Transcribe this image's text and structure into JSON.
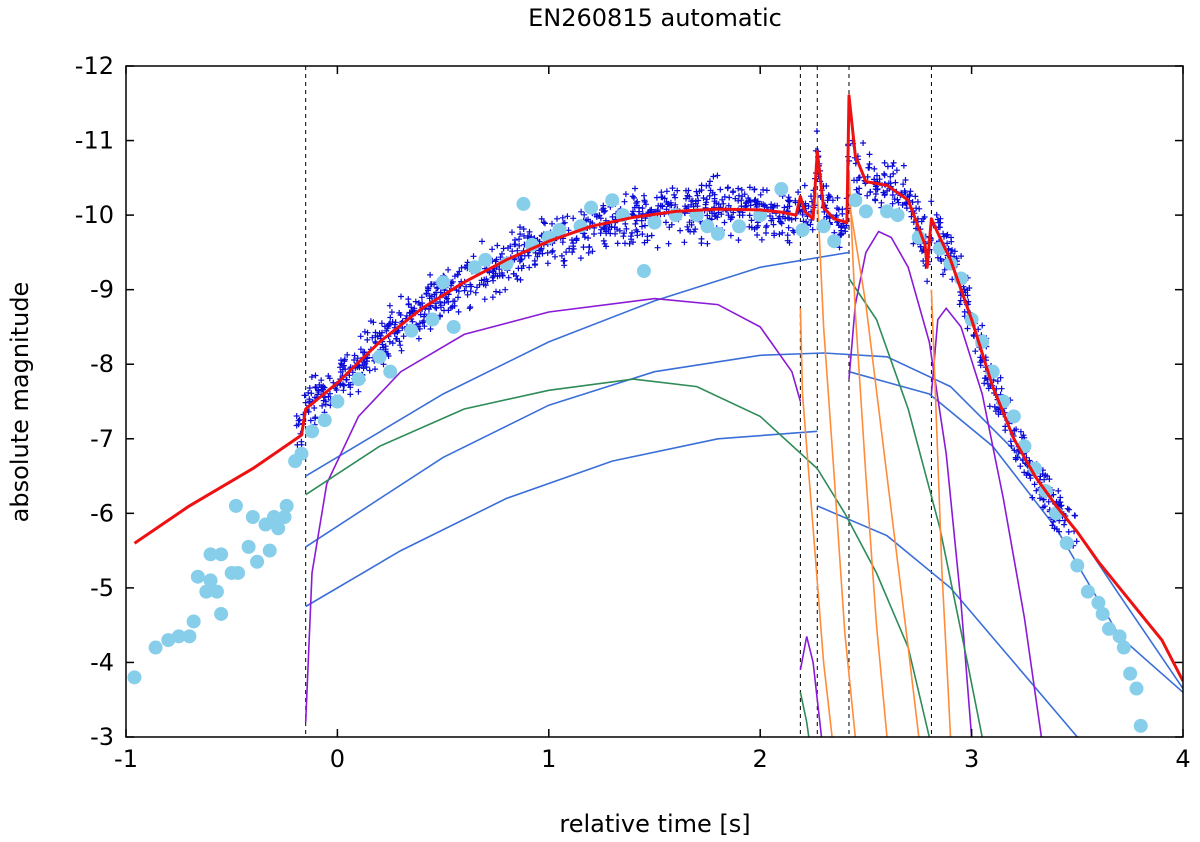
{
  "chart_data": {
    "type": "scatter",
    "title": "EN260815 automatic",
    "xlabel": "relative time [s]",
    "ylabel": "absolute magnitude",
    "xlim": [
      -1,
      4
    ],
    "ylim": [
      -3,
      -12
    ],
    "y_axis_inverted": true,
    "grid": false,
    "legend": "none",
    "x_ticks": [
      -1,
      0,
      1,
      2,
      3,
      4
    ],
    "y_ticks": [
      -3,
      -4,
      -5,
      -6,
      -7,
      -8,
      -9,
      -10,
      -11,
      -12
    ],
    "vlines": [
      -0.15,
      2.19,
      2.27,
      2.42,
      2.81
    ],
    "colors": {
      "observed_plus": "#0b0bd6",
      "observed_circles": "#87ceeb",
      "model_total": "#ee1111",
      "component_blue": "#3b6fd8",
      "component_purple": "#8b1ad6",
      "component_green": "#2e8b57",
      "component_orange": "#ff8c3a"
    },
    "series": [
      {
        "style": "circles",
        "color_key": "observed_circles",
        "points": [
          [
            -0.96,
            -3.8
          ],
          [
            -0.86,
            -4.2
          ],
          [
            -0.8,
            -4.3
          ],
          [
            -0.75,
            -4.35
          ],
          [
            -0.7,
            -4.35
          ],
          [
            -0.68,
            -4.55
          ],
          [
            -0.66,
            -5.15
          ],
          [
            -0.62,
            -4.95
          ],
          [
            -0.6,
            -5.45
          ],
          [
            -0.6,
            -5.1
          ],
          [
            -0.57,
            -4.95
          ],
          [
            -0.55,
            -5.45
          ],
          [
            -0.55,
            -4.65
          ],
          [
            -0.5,
            -5.2
          ],
          [
            -0.48,
            -6.1
          ],
          [
            -0.47,
            -5.2
          ],
          [
            -0.42,
            -5.55
          ],
          [
            -0.4,
            -5.95
          ],
          [
            -0.38,
            -5.35
          ],
          [
            -0.34,
            -5.85
          ],
          [
            -0.32,
            -5.5
          ],
          [
            -0.3,
            -5.95
          ],
          [
            -0.28,
            -5.8
          ],
          [
            -0.25,
            -5.95
          ],
          [
            -0.24,
            -6.1
          ],
          [
            -0.2,
            -6.7
          ],
          [
            -0.17,
            -6.8
          ],
          [
            -0.12,
            -7.1
          ],
          [
            -0.06,
            -7.25
          ],
          [
            0.0,
            -7.5
          ],
          [
            0.1,
            -7.8
          ],
          [
            0.2,
            -8.1
          ],
          [
            0.25,
            -7.9
          ],
          [
            0.35,
            -8.45
          ],
          [
            0.45,
            -8.6
          ],
          [
            0.5,
            -9.1
          ],
          [
            0.55,
            -8.5
          ],
          [
            0.65,
            -9.3
          ],
          [
            0.7,
            -9.4
          ],
          [
            0.8,
            -9.35
          ],
          [
            0.88,
            -10.15
          ],
          [
            0.92,
            -9.6
          ],
          [
            1.0,
            -9.7
          ],
          [
            1.05,
            -9.8
          ],
          [
            1.15,
            -9.85
          ],
          [
            1.2,
            -10.1
          ],
          [
            1.3,
            -10.2
          ],
          [
            1.35,
            -10.0
          ],
          [
            1.45,
            -9.25
          ],
          [
            1.5,
            -9.9
          ],
          [
            1.6,
            -10.0
          ],
          [
            1.7,
            -10.0
          ],
          [
            1.75,
            -9.85
          ],
          [
            1.8,
            -9.75
          ],
          [
            1.9,
            -9.85
          ],
          [
            2.0,
            -10.0
          ],
          [
            2.1,
            -10.35
          ],
          [
            2.2,
            -9.8
          ],
          [
            2.3,
            -9.85
          ],
          [
            2.35,
            -9.65
          ],
          [
            2.45,
            -10.2
          ],
          [
            2.5,
            -10.05
          ],
          [
            2.6,
            -10.05
          ],
          [
            2.65,
            -10.0
          ],
          [
            2.75,
            -9.7
          ],
          [
            2.85,
            -9.55
          ],
          [
            2.9,
            -9.35
          ],
          [
            2.95,
            -9.15
          ],
          [
            3.0,
            -8.6
          ],
          [
            3.05,
            -8.3
          ],
          [
            3.1,
            -7.9
          ],
          [
            3.15,
            -7.5
          ],
          [
            3.2,
            -7.3
          ],
          [
            3.25,
            -6.9
          ],
          [
            3.3,
            -6.6
          ],
          [
            3.35,
            -6.3
          ],
          [
            3.4,
            -6.0
          ],
          [
            3.45,
            -5.6
          ],
          [
            3.5,
            -5.3
          ],
          [
            3.55,
            -4.95
          ],
          [
            3.6,
            -4.8
          ],
          [
            3.62,
            -4.65
          ],
          [
            3.65,
            -4.45
          ],
          [
            3.7,
            -4.35
          ],
          [
            3.72,
            -4.2
          ],
          [
            3.75,
            -3.85
          ],
          [
            3.78,
            -3.65
          ],
          [
            3.8,
            -3.15
          ]
        ]
      },
      {
        "style": "plus",
        "color_key": "observed_plus",
        "generator": "dense band around model_total from t=-0.2 to t=3.5, scatter amplitude 0.3 mag"
      },
      {
        "style": "line",
        "color_key": "model_total",
        "points": [
          [
            -0.96,
            -5.6
          ],
          [
            -0.7,
            -6.1
          ],
          [
            -0.4,
            -6.6
          ],
          [
            -0.17,
            -7.05
          ],
          [
            -0.15,
            -7.4
          ],
          [
            0.0,
            -7.75
          ],
          [
            0.2,
            -8.3
          ],
          [
            0.4,
            -8.75
          ],
          [
            0.6,
            -9.1
          ],
          [
            0.8,
            -9.4
          ],
          [
            1.0,
            -9.65
          ],
          [
            1.2,
            -9.85
          ],
          [
            1.4,
            -9.97
          ],
          [
            1.6,
            -10.05
          ],
          [
            1.8,
            -10.08
          ],
          [
            2.0,
            -10.07
          ],
          [
            2.1,
            -10.04
          ],
          [
            2.17,
            -10.0
          ],
          [
            2.19,
            -10.25
          ],
          [
            2.21,
            -10.05
          ],
          [
            2.25,
            -9.95
          ],
          [
            2.27,
            -10.85
          ],
          [
            2.3,
            -10.1
          ],
          [
            2.35,
            -9.95
          ],
          [
            2.41,
            -9.9
          ],
          [
            2.42,
            -11.6
          ],
          [
            2.45,
            -10.8
          ],
          [
            2.5,
            -10.45
          ],
          [
            2.6,
            -10.4
          ],
          [
            2.7,
            -10.2
          ],
          [
            2.78,
            -9.6
          ],
          [
            2.79,
            -9.3
          ],
          [
            2.81,
            -9.95
          ],
          [
            2.85,
            -9.7
          ],
          [
            2.9,
            -9.4
          ],
          [
            3.0,
            -8.6
          ],
          [
            3.1,
            -7.7
          ],
          [
            3.2,
            -7.0
          ],
          [
            3.3,
            -6.5
          ],
          [
            3.4,
            -6.1
          ],
          [
            3.5,
            -5.75
          ],
          [
            3.6,
            -5.35
          ],
          [
            3.7,
            -5.0
          ],
          [
            3.8,
            -4.65
          ],
          [
            3.9,
            -4.3
          ],
          [
            4.0,
            -3.75
          ]
        ]
      },
      {
        "style": "line",
        "color_key": "component_blue",
        "points": [
          [
            -0.15,
            -6.5
          ],
          [
            0.5,
            -7.6
          ],
          [
            1.0,
            -8.3
          ],
          [
            1.5,
            -8.85
          ],
          [
            2.0,
            -9.3
          ],
          [
            2.42,
            -9.5
          ]
        ]
      },
      {
        "style": "line",
        "color_key": "component_blue",
        "points": [
          [
            -0.15,
            -5.55
          ],
          [
            0.5,
            -6.75
          ],
          [
            1.0,
            -7.45
          ],
          [
            1.5,
            -7.9
          ],
          [
            2.0,
            -8.12
          ],
          [
            2.3,
            -8.15
          ],
          [
            2.6,
            -8.1
          ],
          [
            2.9,
            -7.7
          ],
          [
            3.2,
            -6.85
          ],
          [
            3.5,
            -5.75
          ],
          [
            3.7,
            -4.9
          ],
          [
            4.0,
            -3.65
          ]
        ]
      },
      {
        "style": "line",
        "color_key": "component_blue",
        "points": [
          [
            -0.15,
            -4.75
          ],
          [
            0.3,
            -5.5
          ],
          [
            0.8,
            -6.2
          ],
          [
            1.3,
            -6.7
          ],
          [
            1.8,
            -7.0
          ],
          [
            2.27,
            -7.1
          ]
        ]
      },
      {
        "style": "line",
        "color_key": "component_blue",
        "points": [
          [
            2.42,
            -7.9
          ],
          [
            2.8,
            -7.6
          ],
          [
            3.1,
            -6.9
          ],
          [
            3.4,
            -5.8
          ],
          [
            3.7,
            -4.35
          ],
          [
            4.0,
            -3.6
          ]
        ]
      },
      {
        "style": "line",
        "color_key": "component_blue",
        "points": [
          [
            2.27,
            -6.1
          ],
          [
            2.6,
            -5.7
          ],
          [
            2.9,
            -5.0
          ],
          [
            3.2,
            -4.0
          ],
          [
            3.5,
            -3.0
          ]
        ]
      },
      {
        "style": "line",
        "color_key": "component_purple",
        "points": [
          [
            -0.15,
            -3.2
          ],
          [
            -0.12,
            -5.2
          ],
          [
            -0.05,
            -6.4
          ],
          [
            0.1,
            -7.3
          ],
          [
            0.3,
            -7.9
          ],
          [
            0.6,
            -8.4
          ],
          [
            1.0,
            -8.7
          ],
          [
            1.5,
            -8.88
          ],
          [
            1.8,
            -8.8
          ],
          [
            2.0,
            -8.5
          ],
          [
            2.15,
            -7.9
          ],
          [
            2.19,
            -7.5
          ]
        ]
      },
      {
        "style": "line",
        "color_key": "component_purple",
        "points": [
          [
            2.19,
            -3.9
          ],
          [
            2.22,
            -4.35
          ],
          [
            2.25,
            -4.0
          ],
          [
            2.27,
            -3.5
          ],
          [
            2.29,
            -3.0
          ]
        ]
      },
      {
        "style": "line",
        "color_key": "component_purple",
        "points": [
          [
            2.42,
            -7.8
          ],
          [
            2.45,
            -8.8
          ],
          [
            2.5,
            -9.5
          ],
          [
            2.56,
            -9.78
          ],
          [
            2.62,
            -9.7
          ],
          [
            2.7,
            -9.3
          ],
          [
            2.8,
            -8.3
          ],
          [
            2.88,
            -6.8
          ],
          [
            2.95,
            -4.8
          ],
          [
            3.0,
            -3.0
          ]
        ]
      },
      {
        "style": "line",
        "color_key": "component_purple",
        "points": [
          [
            2.81,
            -7.6
          ],
          [
            2.84,
            -8.6
          ],
          [
            2.88,
            -8.75
          ],
          [
            2.95,
            -8.5
          ],
          [
            3.05,
            -7.6
          ],
          [
            3.15,
            -6.2
          ],
          [
            3.25,
            -4.6
          ],
          [
            3.33,
            -3.0
          ]
        ]
      },
      {
        "style": "line",
        "color_key": "component_green",
        "points": [
          [
            -0.15,
            -6.25
          ],
          [
            0.2,
            -6.9
          ],
          [
            0.6,
            -7.4
          ],
          [
            1.0,
            -7.65
          ],
          [
            1.4,
            -7.8
          ],
          [
            1.7,
            -7.7
          ],
          [
            2.0,
            -7.3
          ],
          [
            2.27,
            -6.6
          ],
          [
            2.4,
            -6.0
          ],
          [
            2.55,
            -5.2
          ],
          [
            2.7,
            -4.2
          ],
          [
            2.8,
            -3.0
          ]
        ]
      },
      {
        "style": "line",
        "color_key": "component_green",
        "points": [
          [
            2.19,
            -3.6
          ],
          [
            2.22,
            -3.2
          ],
          [
            2.23,
            -3.0
          ]
        ]
      },
      {
        "style": "line",
        "color_key": "component_green",
        "points": [
          [
            2.42,
            -9.15
          ],
          [
            2.55,
            -8.6
          ],
          [
            2.7,
            -7.4
          ],
          [
            2.85,
            -5.8
          ],
          [
            2.98,
            -4.0
          ],
          [
            3.05,
            -3.0
          ]
        ]
      },
      {
        "style": "line",
        "color_key": "component_orange",
        "points": [
          [
            2.19,
            -8.75
          ],
          [
            2.2,
            -7.6
          ],
          [
            2.25,
            -5.8
          ],
          [
            2.3,
            -4.0
          ],
          [
            2.34,
            -3.0
          ]
        ]
      },
      {
        "style": "line",
        "color_key": "component_orange",
        "points": [
          [
            2.27,
            -10.3
          ],
          [
            2.3,
            -8.5
          ],
          [
            2.35,
            -6.5
          ],
          [
            2.4,
            -4.4
          ],
          [
            2.45,
            -3.0
          ]
        ]
      },
      {
        "style": "line",
        "color_key": "component_orange",
        "points": [
          [
            2.42,
            -10.6
          ],
          [
            2.45,
            -8.7
          ],
          [
            2.5,
            -6.5
          ],
          [
            2.55,
            -4.5
          ],
          [
            2.6,
            -3.0
          ]
        ]
      },
      {
        "style": "line",
        "color_key": "component_orange",
        "points": [
          [
            2.42,
            -10.2
          ],
          [
            2.5,
            -8.8
          ],
          [
            2.6,
            -6.5
          ],
          [
            2.7,
            -4.2
          ],
          [
            2.75,
            -3.0
          ]
        ]
      },
      {
        "style": "line",
        "color_key": "component_orange",
        "points": [
          [
            2.81,
            -9.0
          ],
          [
            2.83,
            -7.5
          ],
          [
            2.86,
            -5.2
          ],
          [
            2.89,
            -3.6
          ],
          [
            2.9,
            -3.0
          ]
        ]
      }
    ]
  }
}
